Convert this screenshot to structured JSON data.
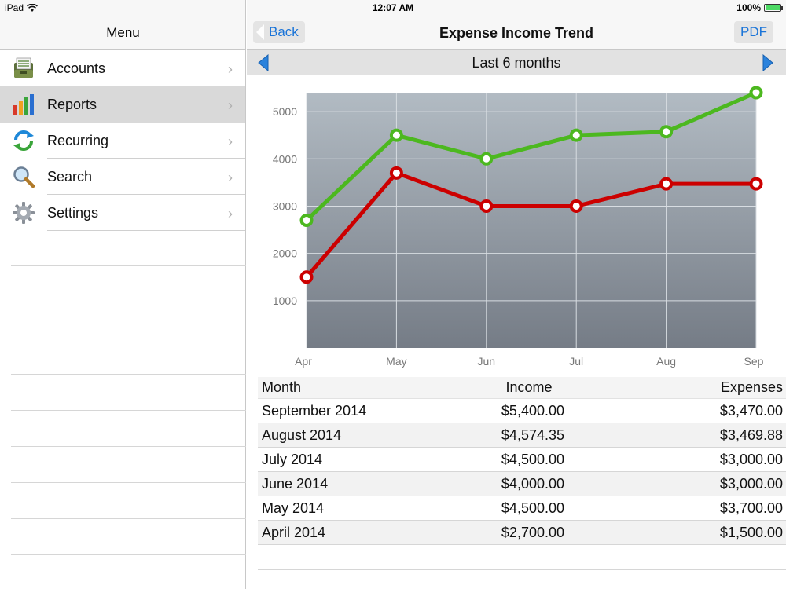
{
  "status_bar": {
    "device": "iPad",
    "time": "12:07 AM",
    "battery": "100%"
  },
  "sidebar": {
    "title": "Menu",
    "items": [
      {
        "label": "Accounts",
        "icon": "accounts-icon",
        "selected": false
      },
      {
        "label": "Reports",
        "icon": "reports-icon",
        "selected": true
      },
      {
        "label": "Recurring",
        "icon": "recurring-icon",
        "selected": false
      },
      {
        "label": "Search",
        "icon": "search-icon",
        "selected": false
      },
      {
        "label": "Settings",
        "icon": "gear-icon",
        "selected": false
      }
    ]
  },
  "nav": {
    "back_label": "Back",
    "title": "Expense Income Trend",
    "pdf_label": "PDF"
  },
  "period": {
    "label": "Last 6 months"
  },
  "colors": {
    "income": "#4cb81f",
    "expenses": "#cc0000",
    "accent": "#1a74d8"
  },
  "chart_data": {
    "type": "line",
    "categories": [
      "Apr",
      "May",
      "Jun",
      "Jul",
      "Aug",
      "Sep"
    ],
    "series": [
      {
        "values": [
          2700,
          4500,
          4000,
          4500,
          4574.35,
          5400
        ],
        "color": "#4cb81f"
      },
      {
        "values": [
          1500,
          3700,
          3000,
          3000,
          3469.88,
          3470
        ],
        "color": "#cc0000"
      }
    ],
    "yticks": [
      1000,
      2000,
      3000,
      4000,
      5000
    ],
    "ylim": [
      0,
      5400
    ],
    "grid": true
  },
  "table": {
    "headers": {
      "month": "Month",
      "income": "Income",
      "expenses": "Expenses"
    },
    "rows": [
      {
        "month": "September 2014",
        "income": "$5,400.00",
        "expenses": "$3,470.00"
      },
      {
        "month": "August 2014",
        "income": "$4,574.35",
        "expenses": "$3,469.88"
      },
      {
        "month": "July 2014",
        "income": "$4,500.00",
        "expenses": "$3,000.00"
      },
      {
        "month": "June 2014",
        "income": "$4,000.00",
        "expenses": "$3,000.00"
      },
      {
        "month": "May 2014",
        "income": "$4,500.00",
        "expenses": "$3,700.00"
      },
      {
        "month": "April 2014",
        "income": "$2,700.00",
        "expenses": "$1,500.00"
      }
    ]
  }
}
